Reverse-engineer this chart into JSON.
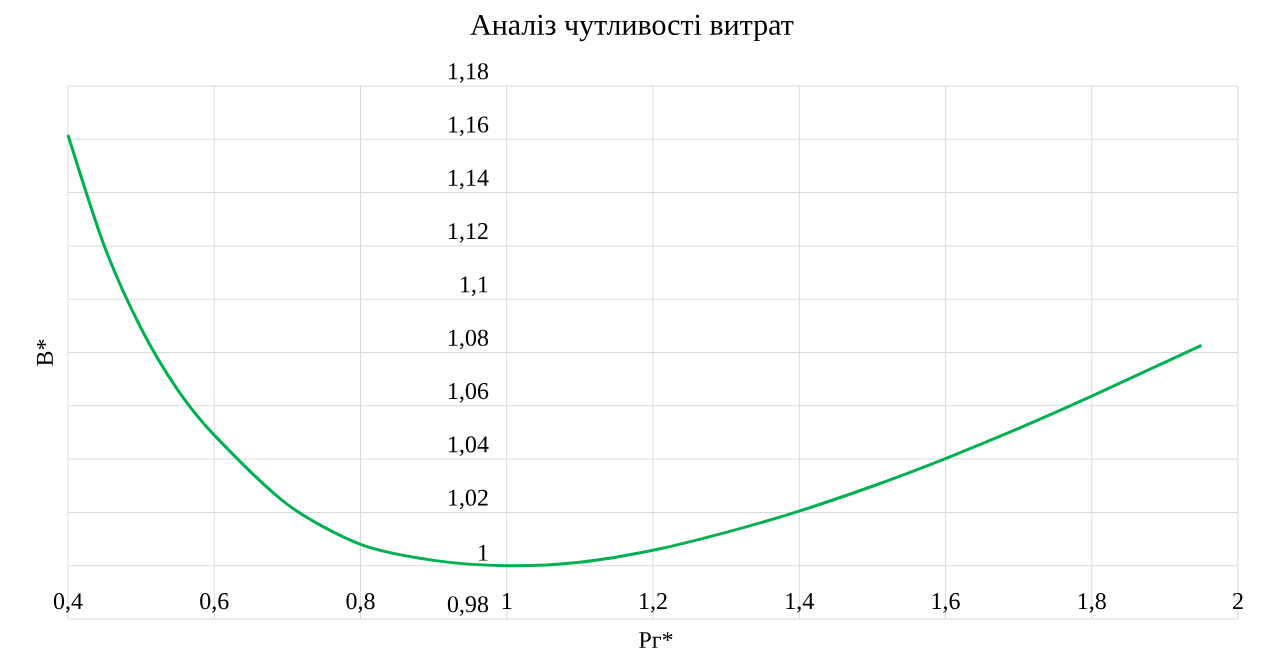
{
  "chart_data": {
    "type": "line",
    "title": "Аналіз чутливості витрат",
    "xlabel": "Рг*",
    "ylabel": "В*",
    "x": [
      0.4,
      0.45,
      0.5,
      0.55,
      0.6,
      0.7,
      0.8,
      0.9,
      1.0,
      1.1,
      1.2,
      1.3,
      1.4,
      1.5,
      1.6,
      1.7,
      1.8,
      1.95
    ],
    "series": [
      {
        "color": "#00b050",
        "values": [
          1.1616,
          1.1197,
          1.089,
          1.066,
          1.049,
          1.023,
          1.008,
          1.002,
          1.0,
          1.0013,
          1.0058,
          1.0125,
          1.0205,
          1.0298,
          1.0402,
          1.0515,
          1.0636,
          1.0827
        ]
      }
    ],
    "xlim": [
      0.4,
      2
    ],
    "ylim": [
      0.98,
      1.18
    ],
    "xticks": [
      {
        "value": 0.4,
        "label": "0,4"
      },
      {
        "value": 0.6,
        "label": "0,6"
      },
      {
        "value": 0.8,
        "label": "0,8"
      },
      1,
      {
        "value": 1.2,
        "label": "1,2"
      },
      {
        "value": 1.4,
        "label": "1,4"
      },
      {
        "value": 1.6,
        "label": "1,6"
      },
      {
        "value": 1.8,
        "label": "1,8"
      },
      2
    ],
    "yticks": [
      {
        "value": 0.98,
        "label": "0,98"
      },
      1,
      {
        "value": 1.02,
        "label": "1,02"
      },
      {
        "value": 1.04,
        "label": "1,04"
      },
      {
        "value": 1.06,
        "label": "1,06"
      },
      {
        "value": 1.08,
        "label": "1,08"
      },
      {
        "value": 1.1,
        "label": "1,1"
      },
      {
        "value": 1.12,
        "label": "1,12"
      },
      {
        "value": 1.14,
        "label": "1,14"
      },
      {
        "value": 1.16,
        "label": "1,16"
      },
      {
        "value": 1.18,
        "label": "1,18"
      }
    ],
    "grid": true
  }
}
